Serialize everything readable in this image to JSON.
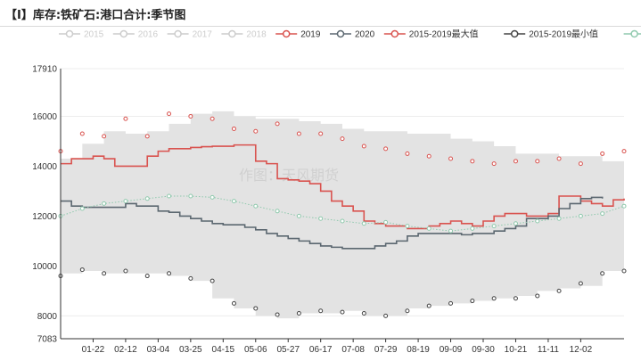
{
  "title": "【I】库存:铁矿石:港口合计:季节图",
  "watermark": "作图：天风期货",
  "colors": {
    "s2019": "#d9534f",
    "s2020": "#5b6770",
    "max": "#d9534f",
    "min": "#444444",
    "avg": "#8fc9ad",
    "band": "#e3e3e3",
    "inactive": "#cccccc"
  },
  "chart_data": {
    "type": "line",
    "title": "库存:铁矿石:港口合计:季节图",
    "y_ticks": [
      7083,
      8000,
      10000,
      12000,
      14000,
      16000,
      17910
    ],
    "ylim": [
      7083,
      17910
    ],
    "x_ticks": [
      "01-22",
      "02-12",
      "03-04",
      "03-25",
      "04-15",
      "05-06",
      "05-27",
      "06-17",
      "07-08",
      "07-29",
      "08-19",
      "09-09",
      "09-30",
      "10-21",
      "11-11",
      "12-02"
    ],
    "legend": [
      {
        "name": "2015",
        "active": false,
        "style": "line-circle",
        "color": "#cccccc"
      },
      {
        "name": "2016",
        "active": false,
        "style": "line-circle",
        "color": "#cccccc"
      },
      {
        "name": "2017",
        "active": false,
        "style": "line-circle",
        "color": "#cccccc"
      },
      {
        "name": "2018",
        "active": false,
        "style": "line-circle",
        "color": "#cccccc"
      },
      {
        "name": "2019",
        "active": true,
        "style": "line-circle",
        "color": "#d9534f"
      },
      {
        "name": "2020",
        "active": true,
        "style": "line-circle",
        "color": "#5b6770"
      },
      {
        "name": "2015-2019最大值",
        "active": true,
        "style": "line-circle",
        "color": "#d9534f"
      },
      {
        "name": "2015-2019最小值",
        "active": true,
        "style": "line-circle",
        "color": "#444444"
      },
      {
        "name": "2015-2019均值",
        "active": true,
        "style": "line-circle",
        "color": "#8fc9ad"
      }
    ],
    "x_domain": [
      0,
      52
    ],
    "band_x": [
      0,
      2,
      4,
      6,
      8,
      10,
      12,
      14,
      16,
      18,
      20,
      22,
      24,
      26,
      28,
      30,
      32,
      34,
      36,
      38,
      40,
      42,
      44,
      46,
      48,
      50,
      52
    ],
    "band_upper": [
      14300,
      14900,
      15400,
      15300,
      15400,
      15700,
      16100,
      16200,
      16000,
      15900,
      15900,
      15800,
      15700,
      15500,
      15400,
      15400,
      15300,
      15300,
      15100,
      15000,
      14800,
      14500,
      14500,
      14400,
      14400,
      14200,
      14600
    ],
    "band_lower": [
      9500,
      9700,
      9800,
      9700,
      9700,
      9700,
      9600,
      9400,
      8700,
      8300,
      8000,
      7900,
      8100,
      8100,
      8200,
      8000,
      8000,
      8300,
      8400,
      8500,
      8600,
      8700,
      8800,
      9000,
      9100,
      9200,
      9800
    ],
    "series": [
      {
        "name": "2019",
        "x": [
          0,
          1,
          2,
          3,
          4,
          5,
          6,
          7,
          8,
          9,
          10,
          11,
          12,
          13,
          14,
          15,
          16,
          17,
          18,
          19,
          20,
          21,
          22,
          23,
          24,
          25,
          26,
          27,
          28,
          29,
          30,
          31,
          32,
          33,
          34,
          35,
          36,
          37,
          38,
          39,
          40,
          41,
          42,
          43,
          44,
          45,
          46,
          47,
          48,
          49,
          50,
          51,
          52
        ],
        "values": [
          14100,
          14300,
          14300,
          14400,
          14300,
          14000,
          14000,
          14000,
          14400,
          14600,
          14700,
          14700,
          14750,
          14780,
          14800,
          14800,
          14850,
          14850,
          14200,
          14100,
          13500,
          13450,
          13400,
          13300,
          13000,
          12600,
          12400,
          12200,
          11800,
          11700,
          11600,
          11600,
          11500,
          11500,
          11600,
          11700,
          11800,
          11700,
          11600,
          11800,
          12000,
          12100,
          12100,
          12000,
          12000,
          12100,
          12800,
          12800,
          12600,
          12500,
          12400,
          12650,
          12700
        ]
      },
      {
        "name": "2020",
        "x": [
          0,
          1,
          2,
          3,
          4,
          5,
          6,
          7,
          8,
          9,
          10,
          11,
          12,
          13,
          14,
          15,
          16,
          17,
          18,
          19,
          20,
          21,
          22,
          23,
          24,
          25,
          26,
          27,
          28,
          29,
          30,
          31,
          32,
          33,
          34,
          35,
          36,
          37,
          38,
          39,
          40,
          41,
          42,
          43,
          44,
          45,
          46,
          47,
          48,
          49,
          50
        ],
        "values": [
          12600,
          12400,
          12350,
          12350,
          12350,
          12350,
          12500,
          12400,
          12400,
          12200,
          12150,
          12000,
          11900,
          11800,
          11700,
          11650,
          11650,
          11550,
          11450,
          11300,
          11200,
          11100,
          11000,
          10900,
          10800,
          10750,
          10700,
          10700,
          10700,
          10800,
          10900,
          11000,
          11200,
          11300,
          11300,
          11300,
          11300,
          11250,
          11300,
          11300,
          11400,
          11500,
          11600,
          11900,
          11900,
          12000,
          12300,
          12500,
          12700,
          12750,
          12700
        ]
      },
      {
        "name": "2015-2019最大值",
        "x": [
          0,
          2,
          4,
          6,
          8,
          10,
          12,
          14,
          16,
          18,
          20,
          22,
          24,
          26,
          28,
          30,
          32,
          34,
          36,
          38,
          40,
          42,
          44,
          46,
          48,
          50,
          52
        ],
        "values": [
          14600,
          15300,
          15200,
          15900,
          15200,
          16100,
          16000,
          15900,
          15500,
          15400,
          15700,
          15300,
          15300,
          15100,
          14800,
          14700,
          14500,
          14400,
          14300,
          14200,
          14100,
          14200,
          14200,
          14300,
          14100,
          14500,
          14600
        ]
      },
      {
        "name": "2015-2019最小值",
        "x": [
          0,
          2,
          4,
          6,
          8,
          10,
          12,
          14,
          16,
          18,
          20,
          22,
          24,
          26,
          28,
          30,
          32,
          34,
          36,
          38,
          40,
          42,
          44,
          46,
          48,
          50,
          52
        ],
        "values": [
          9600,
          9850,
          9700,
          9800,
          9600,
          9700,
          9500,
          9400,
          8500,
          8300,
          8050,
          8100,
          8200,
          8150,
          8100,
          8000,
          8200,
          8400,
          8500,
          8600,
          8700,
          8700,
          8800,
          9000,
          9300,
          9700,
          9800
        ]
      },
      {
        "name": "2015-2019均值",
        "x": [
          0,
          2,
          4,
          6,
          8,
          10,
          12,
          14,
          16,
          18,
          20,
          22,
          24,
          26,
          28,
          30,
          32,
          34,
          36,
          38,
          40,
          42,
          44,
          46,
          48,
          50,
          52
        ],
        "values": [
          12000,
          12300,
          12500,
          12600,
          12700,
          12800,
          12800,
          12750,
          12600,
          12400,
          12200,
          12000,
          11900,
          11800,
          11700,
          11750,
          11600,
          11500,
          11400,
          11500,
          11600,
          11700,
          11800,
          11900,
          12000,
          12100,
          12400
        ]
      }
    ]
  }
}
